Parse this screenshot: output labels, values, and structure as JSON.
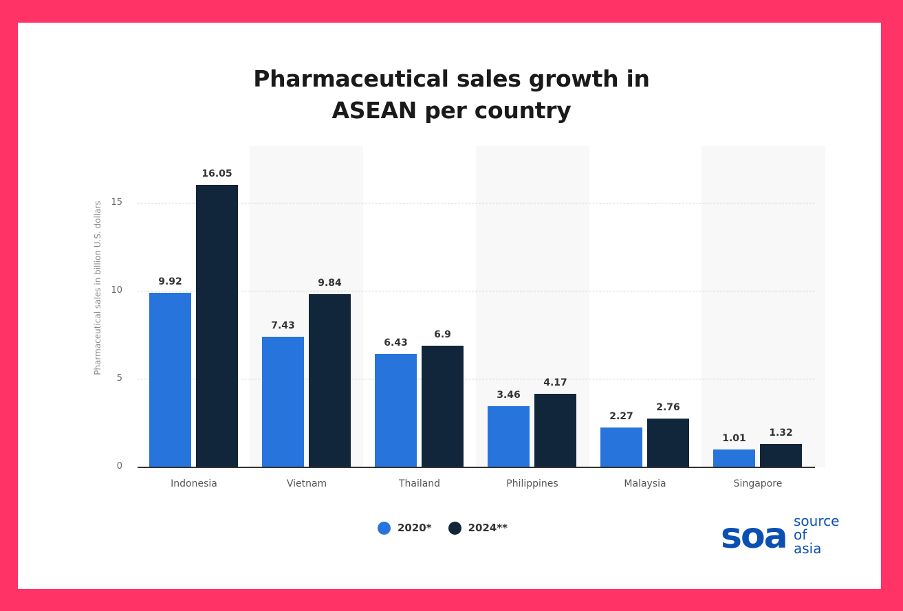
{
  "title_line1": "Pharmaceutical sales growth in",
  "title_line2": "ASEAN per country",
  "colors": {
    "frame": "#ff3366",
    "series_2020": "#2774dd",
    "series_2024": "#12263b",
    "logo": "#0b4fb3"
  },
  "legend": [
    {
      "label": "2020*",
      "color": "#2774dd"
    },
    {
      "label": "2024**",
      "color": "#12263b"
    }
  ],
  "logo": {
    "mark": "soa",
    "line1": "source",
    "line2": "of",
    "line3": "asia"
  },
  "chart_data": {
    "type": "bar",
    "title": "Pharmaceutical sales growth in ASEAN per country",
    "xlabel": "",
    "ylabel": "Pharmaceutical sales in billion U.S. dollars",
    "categories": [
      "Indonesia",
      "Vietnam",
      "Thailand",
      "Philippines",
      "Malaysia",
      "Singapore"
    ],
    "series": [
      {
        "name": "2020*",
        "values": [
          9.92,
          7.43,
          6.43,
          3.46,
          2.27,
          1.01
        ]
      },
      {
        "name": "2024**",
        "values": [
          16.05,
          9.84,
          6.9,
          4.17,
          2.76,
          1.32
        ]
      }
    ],
    "yticks": [
      "0",
      "5",
      "10",
      "15"
    ],
    "ylim": [
      0,
      17
    ],
    "grid": true,
    "legend_position": "bottom"
  }
}
